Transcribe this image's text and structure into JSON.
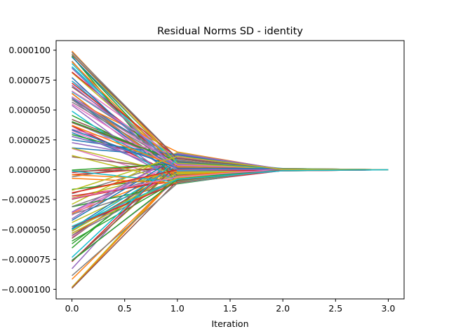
{
  "chart_data": {
    "type": "line",
    "title": "Residual Norms SD - identity",
    "xlabel": "Iteration",
    "ylabel": "",
    "xlim": [
      -0.15,
      3.15
    ],
    "ylim": [
      -0.000108,
      0.000108
    ],
    "x": [
      0,
      1,
      2,
      3
    ],
    "xticks": [
      0.0,
      0.5,
      1.0,
      1.5,
      2.0,
      2.5,
      3.0
    ],
    "xtick_labels": [
      "0.0",
      "0.5",
      "1.0",
      "1.5",
      "2.0",
      "2.5",
      "3.0"
    ],
    "yticks": [
      0.0001,
      7.5e-05,
      5e-05,
      2.5e-05,
      0,
      -2.5e-05,
      -5e-05,
      -7.5e-05,
      -0.0001
    ],
    "ytick_labels": [
      "0.000100",
      "0.000075",
      "0.000050",
      "0.000025",
      "0.000000",
      "−0.000025",
      "−0.000050",
      "−0.000075",
      "−0.000100"
    ],
    "grid": false,
    "series_count": 120,
    "value_range_at_iteration": {
      "0": [
        -0.0001,
        0.0001
      ],
      "1": [
        -1.2e-05,
        1.5e-05
      ],
      "2": [
        -1e-06,
        1e-06
      ],
      "3": [
        0,
        0
      ]
    },
    "colors": [
      "#1f77b4",
      "#ff7f0e",
      "#2ca02c",
      "#d62728",
      "#9467bd",
      "#8c564b",
      "#e377c2",
      "#7f7f7f",
      "#bcbd22",
      "#17becf"
    ]
  }
}
